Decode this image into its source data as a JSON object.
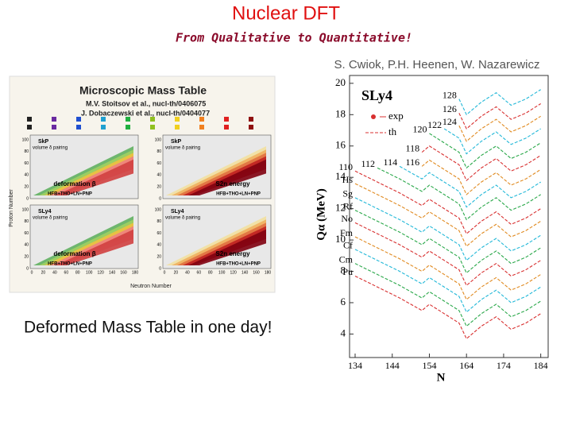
{
  "header": {
    "title": "Nuclear DFT",
    "subtitle": "From Qualitative to Quantitative!",
    "credit": "S. Cwiok, P.H. Heenen, W. Nazarewicz"
  },
  "figure": {
    "title": "Microscopic Mass Table",
    "refs": [
      "M.V. Stoitsov et al., nucl-th/0406075",
      "J. Dobaczewski et al., nucl-th/0404077"
    ],
    "panels": [
      {
        "force": "SkP",
        "pairing": "volume δ pairing",
        "quantity": "deformation β",
        "method": "HFB+THO+LN+PNP"
      },
      {
        "force": "SkP",
        "pairing": "volume δ pairing",
        "quantity": "S2n energy",
        "method": "HFB+THO+LN+PNP"
      },
      {
        "force": "SLy4",
        "pairing": "volume δ pairing",
        "quantity": "deformation β",
        "method": "HFB+THO+LN+PNP"
      },
      {
        "force": "SLy4",
        "pairing": "volume δ pairing",
        "quantity": "S2n energy",
        "method": "HFB+THO+LN+PNP"
      }
    ],
    "y_label": "Proton Number",
    "x_label": "Neutron Number",
    "yticks": [
      0,
      20,
      40,
      60,
      80,
      100
    ],
    "xticks": [
      0,
      20,
      40,
      60,
      80,
      100,
      120,
      140,
      160,
      180
    ]
  },
  "caption": "Deformed Mass Table in one day!",
  "chart_data": {
    "type": "line",
    "title": "SLy4",
    "x_label": "N",
    "y_label": "Qα (MeV)",
    "legend": [
      "exp",
      "th"
    ],
    "x": [
      134,
      140,
      146,
      152,
      154,
      158,
      162,
      164,
      168,
      172,
      176,
      180,
      184
    ],
    "xlim": [
      132.5,
      186
    ],
    "ylim": [
      2.5,
      20.5
    ],
    "xticks": [
      134,
      144,
      154,
      164,
      174,
      184
    ],
    "yticks": [
      4,
      6,
      8,
      10,
      12,
      14,
      16,
      18,
      20
    ],
    "series": [
      {
        "name": "Pu",
        "color": "#d83030",
        "values": [
          7.7,
          7.0,
          6.3,
          5.5,
          5.9,
          5.3,
          4.7,
          3.7,
          4.5,
          5.1,
          4.3,
          4.7,
          5.3
        ]
      },
      {
        "name": "Cm",
        "color": "#2aa84a",
        "values": [
          8.5,
          7.8,
          7.1,
          6.3,
          6.7,
          6.1,
          5.5,
          4.5,
          5.3,
          5.9,
          5.1,
          5.5,
          6.1
        ]
      },
      {
        "name": "Cf",
        "color": "#22b8d8",
        "values": [
          9.4,
          8.7,
          8.0,
          7.2,
          7.6,
          7.0,
          6.4,
          5.4,
          6.2,
          6.8,
          6.0,
          6.4,
          7.0
        ]
      },
      {
        "name": "Fm",
        "color": "#e08a20",
        "values": [
          10.2,
          9.5,
          8.8,
          8.0,
          8.4,
          7.8,
          7.2,
          6.2,
          7.0,
          7.6,
          6.8,
          7.2,
          7.8
        ]
      },
      {
        "name": "No",
        "color": "#d83030",
        "values": [
          11.1,
          10.4,
          9.7,
          8.9,
          9.3,
          8.7,
          8.1,
          7.1,
          7.9,
          8.5,
          7.7,
          8.1,
          8.7
        ]
      },
      {
        "name": "Rf",
        "color": "#2aa84a",
        "values": [
          11.9,
          11.2,
          10.5,
          9.7,
          10.1,
          9.5,
          8.9,
          7.9,
          8.7,
          9.3,
          8.5,
          8.9,
          9.5
        ]
      },
      {
        "name": "Sg",
        "color": "#22b8d8",
        "values": [
          12.7,
          12.0,
          11.3,
          10.5,
          10.9,
          10.3,
          9.7,
          8.7,
          9.5,
          10.1,
          9.3,
          9.7,
          10.3
        ]
      },
      {
        "name": "Hs",
        "color": "#e08a20",
        "values": [
          13.6,
          12.9,
          12.2,
          11.4,
          11.8,
          11.2,
          10.6,
          9.6,
          10.4,
          11.0,
          10.2,
          10.6,
          11.2
        ]
      },
      {
        "name": "110",
        "color": "#d83030",
        "values": [
          14.4,
          13.7,
          13.0,
          12.2,
          12.6,
          12.0,
          11.4,
          10.4,
          11.2,
          11.8,
          11.0,
          11.4,
          12.0
        ]
      },
      {
        "name": "112",
        "color": "#2aa84a",
        "values": [
          null,
          14.6,
          13.9,
          13.1,
          13.5,
          12.9,
          12.3,
          11.3,
          12.1,
          12.7,
          11.9,
          12.3,
          12.9
        ]
      },
      {
        "name": "114",
        "color": "#22b8d8",
        "values": [
          null,
          null,
          14.7,
          13.9,
          14.3,
          13.7,
          13.1,
          12.1,
          12.9,
          13.5,
          12.7,
          13.1,
          13.7
        ]
      },
      {
        "name": "116",
        "color": "#e08a20",
        "values": [
          null,
          null,
          null,
          14.7,
          15.1,
          14.5,
          13.9,
          12.9,
          13.7,
          14.3,
          13.5,
          13.9,
          14.5
        ]
      },
      {
        "name": "118",
        "color": "#d83030",
        "values": [
          null,
          null,
          null,
          15.6,
          16.0,
          15.4,
          14.8,
          13.8,
          14.6,
          15.2,
          14.4,
          14.8,
          15.4
        ]
      },
      {
        "name": "120",
        "color": "#2aa84a",
        "values": [
          null,
          null,
          null,
          null,
          16.8,
          16.2,
          15.6,
          14.6,
          15.4,
          16.0,
          15.2,
          15.6,
          16.2
        ]
      },
      {
        "name": "122",
        "color": "#22b8d8",
        "values": [
          null,
          null,
          null,
          null,
          null,
          17.1,
          16.5,
          15.5,
          16.3,
          16.9,
          16.1,
          16.5,
          17.1
        ]
      },
      {
        "name": "124",
        "color": "#e08a20",
        "values": [
          null,
          null,
          null,
          null,
          null,
          null,
          17.3,
          16.3,
          17.1,
          17.7,
          16.9,
          17.3,
          17.9
        ]
      },
      {
        "name": "126",
        "color": "#d83030",
        "values": [
          null,
          null,
          null,
          null,
          null,
          null,
          18.1,
          17.1,
          17.9,
          18.5,
          17.7,
          18.1,
          18.7
        ]
      },
      {
        "name": "128",
        "color": "#22b8d8",
        "values": [
          null,
          null,
          null,
          null,
          null,
          null,
          19.0,
          18.0,
          18.8,
          19.4,
          18.6,
          19.0,
          19.6
        ]
      }
    ]
  }
}
